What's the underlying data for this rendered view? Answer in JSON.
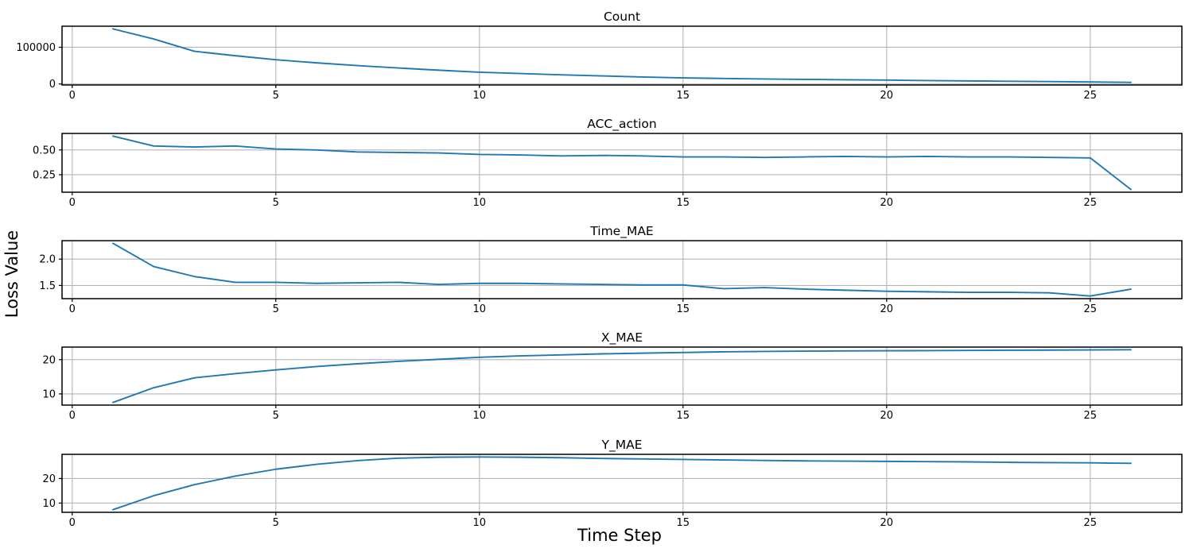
{
  "chart_data": {
    "type": "line",
    "figure_kind": "stacked-subplots",
    "xlabel": "Time Step",
    "ylabel": "Loss Value",
    "x": [
      1,
      2,
      3,
      4,
      5,
      6,
      7,
      8,
      9,
      10,
      11,
      12,
      13,
      14,
      15,
      16,
      17,
      18,
      19,
      20,
      21,
      22,
      23,
      24,
      25,
      26
    ],
    "xlim": [
      -0.25,
      27.25
    ],
    "xticks": {
      "values": [
        0,
        5,
        10,
        15,
        20,
        25
      ],
      "labels": [
        "0",
        "5",
        "10",
        "15",
        "20",
        "25"
      ]
    },
    "grid": true,
    "legend": false,
    "colors": {
      "line": "#1f77b4",
      "grid": "#b4b4b4",
      "spine": "#000000",
      "text": "#000000",
      "background": "#ffffff"
    },
    "subplots": [
      {
        "title": "Count",
        "ylim": [
          -2775,
          157275
        ],
        "yticks": {
          "values": [
            0,
            100000
          ],
          "labels": [
            "0",
            "100000"
          ]
        },
        "values": [
          150000,
          122500,
          89000,
          77000,
          66000,
          57500,
          50000,
          43500,
          37500,
          32000,
          28500,
          25000,
          22000,
          19000,
          16500,
          15000,
          13500,
          12500,
          11500,
          10500,
          9200,
          8300,
          7400,
          6500,
          5500,
          4500
        ]
      },
      {
        "title": "ACC_action",
        "ylim": [
          0.073,
          0.667
        ],
        "yticks": {
          "values": [
            0.25,
            0.5
          ],
          "labels": [
            "0.25",
            "0.50"
          ]
        },
        "values": [
          0.64,
          0.54,
          0.53,
          0.54,
          0.51,
          0.5,
          0.48,
          0.475,
          0.47,
          0.455,
          0.45,
          0.44,
          0.445,
          0.44,
          0.43,
          0.43,
          0.425,
          0.43,
          0.435,
          0.43,
          0.435,
          0.43,
          0.43,
          0.425,
          0.42,
          0.1
        ]
      },
      {
        "title": "Time_MAE",
        "ylim": [
          1.25,
          2.35
        ],
        "yticks": {
          "values": [
            1.5,
            2.0
          ],
          "labels": [
            "1.5",
            "2.0"
          ]
        },
        "values": [
          2.3,
          1.86,
          1.67,
          1.56,
          1.56,
          1.54,
          1.55,
          1.56,
          1.52,
          1.54,
          1.54,
          1.53,
          1.52,
          1.51,
          1.51,
          1.44,
          1.46,
          1.43,
          1.41,
          1.39,
          1.38,
          1.37,
          1.37,
          1.36,
          1.3,
          1.43
        ]
      },
      {
        "title": "X_MAE",
        "ylim": [
          6.73,
          23.67
        ],
        "yticks": {
          "values": [
            10,
            20
          ],
          "labels": [
            "10",
            "20"
          ]
        },
        "values": [
          7.5,
          11.8,
          14.7,
          15.9,
          17.0,
          18.0,
          18.8,
          19.5,
          20.1,
          20.7,
          21.1,
          21.4,
          21.7,
          21.9,
          22.1,
          22.3,
          22.4,
          22.5,
          22.55,
          22.6,
          22.65,
          22.7,
          22.75,
          22.8,
          22.85,
          22.9
        ]
      },
      {
        "title": "Y_MAE",
        "ylim": [
          6.225,
          29.875
        ],
        "yticks": {
          "values": [
            10,
            20
          ],
          "labels": [
            "10",
            "20"
          ]
        },
        "values": [
          7.3,
          13.0,
          17.5,
          21.0,
          23.8,
          25.8,
          27.3,
          28.3,
          28.7,
          28.8,
          28.7,
          28.5,
          28.2,
          28.0,
          27.8,
          27.6,
          27.4,
          27.2,
          27.1,
          27.0,
          26.9,
          26.8,
          26.6,
          26.5,
          26.4,
          26.2
        ]
      }
    ]
  }
}
